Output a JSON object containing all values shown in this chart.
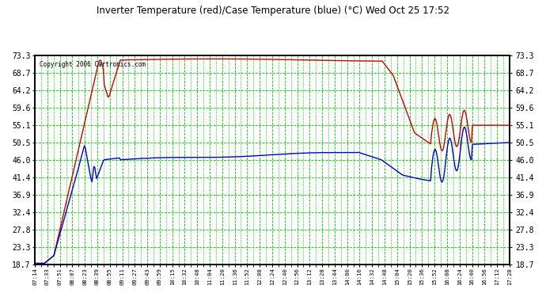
{
  "title": "Inverter Temperature (red)/Case Temperature (blue) (°C) Wed Oct 25 17:52",
  "copyright": "Copyright 2006 Cartronics.com",
  "background_color": "#ffffff",
  "plot_bg_color": "#ffffff",
  "grid_color": "#00cc00",
  "yticks": [
    18.7,
    23.3,
    27.8,
    32.4,
    36.9,
    41.4,
    46.0,
    50.5,
    55.1,
    59.6,
    64.2,
    68.7,
    73.3
  ],
  "ymin": 18.7,
  "ymax": 73.3,
  "x_labels": [
    "07:14",
    "07:33",
    "07:51",
    "08:07",
    "08:23",
    "08:39",
    "08:55",
    "09:11",
    "09:27",
    "09:43",
    "09:59",
    "10:15",
    "10:32",
    "10:48",
    "11:04",
    "11:20",
    "11:36",
    "11:52",
    "12:08",
    "12:24",
    "12:40",
    "12:56",
    "13:12",
    "13:28",
    "13:44",
    "14:00",
    "14:16",
    "14:32",
    "14:48",
    "15:04",
    "15:20",
    "15:36",
    "15:52",
    "16:08",
    "16:24",
    "16:40",
    "16:56",
    "17:12",
    "17:28"
  ],
  "line_color_red": "#cc0000",
  "line_color_blue": "#0000cc"
}
